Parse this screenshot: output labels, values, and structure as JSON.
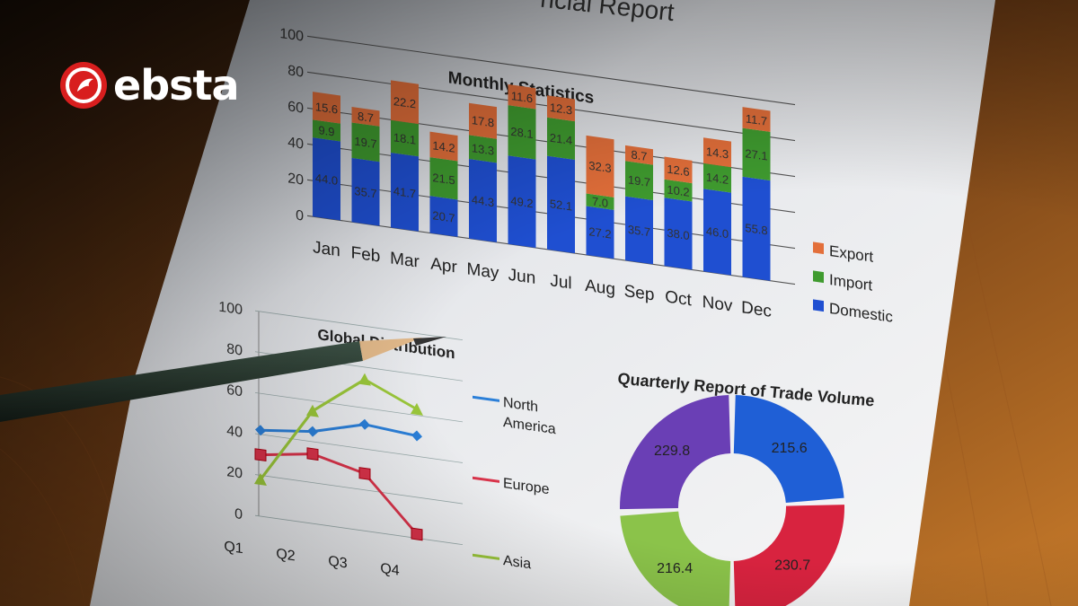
{
  "brand": {
    "name": "ebsta",
    "icon": "bird-logo-icon",
    "accent": "#d81e1e"
  },
  "report_title": "ncial Report",
  "colors": {
    "export": "#e36f3a",
    "import": "#3f9b2f",
    "domestic": "#1f4fd1",
    "north_america": "#2b7fd8",
    "europe": "#d9334a",
    "asia": "#9ac63a",
    "q1": "#1f5fd6",
    "q2": "#d8233f",
    "q3": "#8bc34a",
    "q4": "#6a3fb5"
  },
  "chart_data": [
    {
      "type": "bar",
      "title": "Monthly Statistics",
      "stacked": true,
      "categories": [
        "Jan",
        "Feb",
        "Mar",
        "Apr",
        "May",
        "Jun",
        "Jul",
        "Aug",
        "Sep",
        "Oct",
        "Nov",
        "Dec"
      ],
      "series": [
        {
          "name": "Domestic",
          "values": [
            44.0,
            35.7,
            41.7,
            20.7,
            44.3,
            49.2,
            52.1,
            27.2,
            35.7,
            38.0,
            46.0,
            55.8
          ]
        },
        {
          "name": "Import",
          "values": [
            9.9,
            19.7,
            18.1,
            21.5,
            13.3,
            28.1,
            21.4,
            7.0,
            19.7,
            10.2,
            14.2,
            27.1
          ]
        },
        {
          "name": "Export",
          "values": [
            15.6,
            8.7,
            22.2,
            14.2,
            17.8,
            11.6,
            12.3,
            32.3,
            8.7,
            12.6,
            14.3,
            11.7
          ]
        }
      ],
      "y_ticks": [
        "100",
        "80",
        "60",
        "40",
        "20",
        "0"
      ],
      "ylim": [
        0,
        100
      ],
      "legend": "right"
    },
    {
      "type": "line",
      "title": "Global Distribution",
      "categories": [
        "Q1",
        "Q2",
        "Q3",
        "Q4"
      ],
      "series": [
        {
          "name_lines": [
            "North",
            "America"
          ],
          "values": [
            42,
            45,
            52,
            50
          ]
        },
        {
          "name_lines": [
            "Europe"
          ],
          "values": [
            30,
            34,
            28,
            2
          ]
        },
        {
          "name_lines": [
            "Asia"
          ],
          "values": [
            18,
            55,
            74,
            63
          ]
        }
      ],
      "y_ticks": [
        "100",
        "80",
        "60",
        "40",
        "20",
        "0"
      ],
      "ylim": [
        0,
        100
      ],
      "legend": "right"
    },
    {
      "type": "pie",
      "title": "Quarterly Report of Trade Volume",
      "donut": true,
      "slices": [
        {
          "label": "215.6",
          "value": 215.6
        },
        {
          "label": "230.7",
          "value": 230.7
        },
        {
          "label": "216.4",
          "value": 216.4
        },
        {
          "label": "229.8",
          "value": 229.8
        }
      ]
    }
  ]
}
